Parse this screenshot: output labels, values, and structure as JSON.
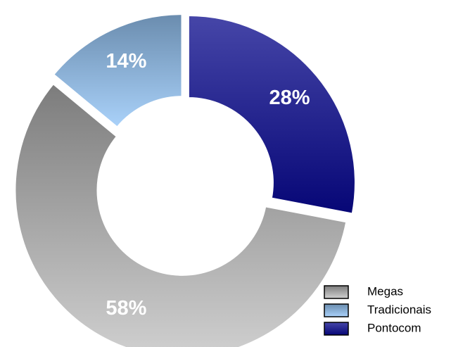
{
  "chart_data": {
    "type": "donut",
    "categories": [
      "Megas",
      "Tradicionais",
      "Pontocom"
    ],
    "values": [
      58,
      14,
      28
    ],
    "value_labels": [
      "58%",
      "14%",
      "28%"
    ],
    "colors": [
      [
        "#7c7c7c",
        "#d0d0d0"
      ],
      [
        "#6a8cae",
        "#aad2fa"
      ],
      [
        "#4646a8",
        "#060676"
      ]
    ],
    "legend": "bottom-right"
  }
}
